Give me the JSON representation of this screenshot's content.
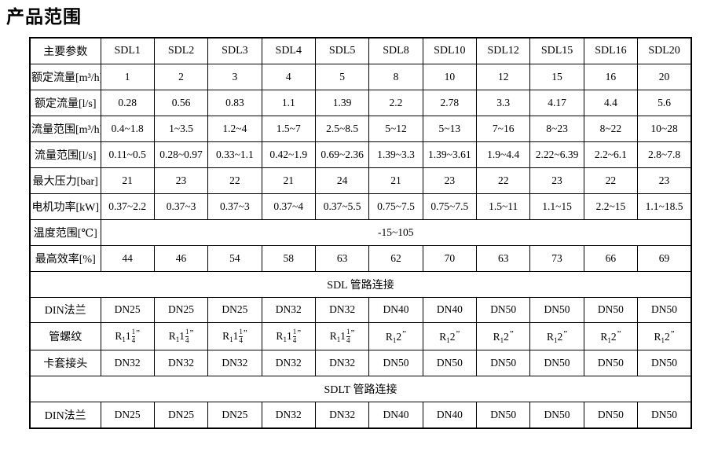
{
  "page_title": "产品范围",
  "colors": {
    "text": "#000000",
    "border": "#000000",
    "background": "#ffffff"
  },
  "table": {
    "corner_label": "主要参数",
    "models": [
      "SDL1",
      "SDL2",
      "SDL3",
      "SDL4",
      "SDL5",
      "SDL8",
      "SDL10",
      "SDL12",
      "SDL15",
      "SDL16",
      "SDL20"
    ],
    "rows": [
      {
        "type": "data",
        "label": "额定流量[m³/h]",
        "values": [
          "1",
          "2",
          "3",
          "4",
          "5",
          "8",
          "10",
          "12",
          "15",
          "16",
          "20"
        ]
      },
      {
        "type": "data",
        "label": "额定流量[l/s]",
        "values": [
          "0.28",
          "0.56",
          "0.83",
          "1.1",
          "1.39",
          "2.2",
          "2.78",
          "3.3",
          "4.17",
          "4.4",
          "5.6"
        ]
      },
      {
        "type": "data",
        "label": "流量范围[m³/h]",
        "values": [
          "0.4~1.8",
          "1~3.5",
          "1.2~4",
          "1.5~7",
          "2.5~8.5",
          "5~12",
          "5~13",
          "7~16",
          "8~23",
          "8~22",
          "10~28"
        ]
      },
      {
        "type": "data",
        "label": "流量范围[l/s]",
        "values": [
          "0.11~0.5",
          "0.28~0.97",
          "0.33~1.1",
          "0.42~1.9",
          "0.69~2.36",
          "1.39~3.3",
          "1.39~3.61",
          "1.9~4.4",
          "2.22~6.39",
          "2.2~6.1",
          "2.8~7.8"
        ]
      },
      {
        "type": "data",
        "label": "最大压力[bar]",
        "values": [
          "21",
          "23",
          "22",
          "21",
          "24",
          "21",
          "23",
          "22",
          "23",
          "22",
          "23"
        ]
      },
      {
        "type": "data",
        "label": "电机功率[kW]",
        "values": [
          "0.37~2.2",
          "0.37~3",
          "0.37~3",
          "0.37~4",
          "0.37~5.5",
          "0.75~7.5",
          "0.75~7.5",
          "1.5~11",
          "1.1~15",
          "2.2~15",
          "1.1~18.5"
        ]
      },
      {
        "type": "merged",
        "label": "温度范围[℃]",
        "value": "-15~105"
      },
      {
        "type": "data",
        "label": "最高效率[%]",
        "values": [
          "44",
          "46",
          "54",
          "58",
          "63",
          "62",
          "70",
          "63",
          "73",
          "66",
          "69"
        ]
      },
      {
        "type": "section",
        "title": "SDL 管路连接"
      },
      {
        "type": "data",
        "label": "DIN法兰",
        "values": [
          "DN25",
          "DN25",
          "DN25",
          "DN32",
          "DN32",
          "DN40",
          "DN40",
          "DN50",
          "DN50",
          "DN50",
          "DN50"
        ]
      },
      {
        "type": "data",
        "label": "管螺纹",
        "values": [
          {
            "prefix": "R",
            "sub": "1",
            "whole": "1",
            "num": "1",
            "den": "4",
            "quote": "”"
          },
          {
            "prefix": "R",
            "sub": "1",
            "whole": "1",
            "num": "1",
            "den": "4",
            "quote": "”"
          },
          {
            "prefix": "R",
            "sub": "1",
            "whole": "1",
            "num": "1",
            "den": "4",
            "quote": "”"
          },
          {
            "prefix": "R",
            "sub": "1",
            "whole": "1",
            "num": "1",
            "den": "4",
            "quote": "”"
          },
          {
            "prefix": "R",
            "sub": "1",
            "whole": "1",
            "num": "1",
            "den": "4",
            "quote": "”"
          },
          {
            "prefix": "R",
            "sub": "1",
            "whole": "2",
            "quote": "”"
          },
          {
            "prefix": "R",
            "sub": "1",
            "whole": "2",
            "quote": "”"
          },
          {
            "prefix": "R",
            "sub": "1",
            "whole": "2",
            "quote": "”"
          },
          {
            "prefix": "R",
            "sub": "1",
            "whole": "2",
            "quote": "”"
          },
          {
            "prefix": "R",
            "sub": "1",
            "whole": "2",
            "quote": "”"
          },
          {
            "prefix": "R",
            "sub": "1",
            "whole": "2",
            "quote": "”"
          }
        ]
      },
      {
        "type": "data",
        "label": "卡套接头",
        "values": [
          "DN32",
          "DN32",
          "DN32",
          "DN32",
          "DN32",
          "DN50",
          "DN50",
          "DN50",
          "DN50",
          "DN50",
          "DN50"
        ]
      },
      {
        "type": "section",
        "title": "SDLT 管路连接"
      },
      {
        "type": "data",
        "label": "DIN法兰",
        "values": [
          "DN25",
          "DN25",
          "DN25",
          "DN32",
          "DN32",
          "DN40",
          "DN40",
          "DN50",
          "DN50",
          "DN50",
          "DN50"
        ]
      }
    ]
  }
}
